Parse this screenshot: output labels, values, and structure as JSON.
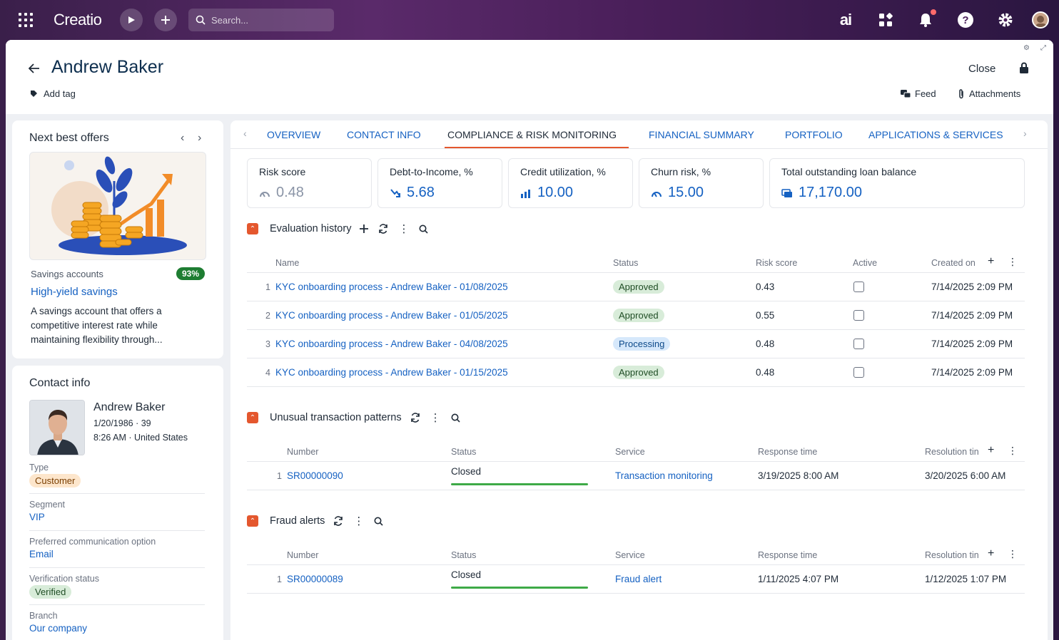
{
  "topbar": {
    "logo": "Creatio",
    "search_placeholder": "Search...",
    "ai_label": "ai"
  },
  "header": {
    "title": "Andrew Baker",
    "add_tag": "Add tag",
    "close": "Close",
    "feed": "Feed",
    "attachments": "Attachments"
  },
  "next_best_offers": {
    "title": "Next best offers",
    "category": "Savings accounts",
    "match": "93%",
    "offer_name": "High-yield savings",
    "description": "A savings account that offers a competitive interest rate while maintaining flexibility through..."
  },
  "contact_info": {
    "title": "Contact info",
    "name": "Andrew Baker",
    "birth": "1/20/1986 · 39",
    "time_location": "8:26 AM · United States",
    "fields": [
      {
        "label": "Type",
        "value": "Customer"
      },
      {
        "label": "Segment",
        "value": "VIP"
      },
      {
        "label": "Preferred communication option",
        "value": "Email"
      },
      {
        "label": "Verification status",
        "value": "Verified"
      },
      {
        "label": "Branch",
        "value": "Our company"
      }
    ]
  },
  "tabs": [
    {
      "label": "OVERVIEW"
    },
    {
      "label": "CONTACT INFO"
    },
    {
      "label": "COMPLIANCE & RISK MONITORING"
    },
    {
      "label": "FINANCIAL SUMMARY"
    },
    {
      "label": "PORTFOLIO"
    },
    {
      "label": "APPLICATIONS & SERVICES"
    }
  ],
  "metrics": [
    {
      "label": "Risk score",
      "value": "0.48",
      "icon": "gauge-icon"
    },
    {
      "label": "Debt-to-Income, %",
      "value": "5.68",
      "icon": "trend-down-icon"
    },
    {
      "label": "Credit utilization, %",
      "value": "10.00",
      "icon": "bar-chart-icon"
    },
    {
      "label": "Churn risk, %",
      "value": "15.00",
      "icon": "gauge-icon"
    },
    {
      "label": "Total outstanding loan balance",
      "value": "17,170.00",
      "icon": "money-icon"
    }
  ],
  "evaluation_history": {
    "title": "Evaluation history",
    "columns": [
      "Name",
      "Status",
      "Risk score",
      "Active",
      "Created on"
    ],
    "rows": [
      {
        "num": "1",
        "name": "KYC onboarding process - Andrew Baker - 01/08/2025",
        "status": "Approved",
        "risk": "0.43",
        "created": "7/14/2025 2:09 PM"
      },
      {
        "num": "2",
        "name": "KYC onboarding process - Andrew Baker - 01/05/2025",
        "status": "Approved",
        "risk": "0.55",
        "created": "7/14/2025 2:09 PM"
      },
      {
        "num": "3",
        "name": "KYC onboarding process - Andrew Baker - 04/08/2025",
        "status": "Processing",
        "risk": "0.48",
        "created": "7/14/2025 2:09 PM"
      },
      {
        "num": "4",
        "name": "KYC onboarding process - Andrew Baker - 01/15/2025",
        "status": "Approved",
        "risk": "0.48",
        "created": "7/14/2025 2:09 PM"
      }
    ]
  },
  "unusual_transactions": {
    "title": "Unusual transaction patterns",
    "columns": [
      "Number",
      "Status",
      "Service",
      "Response time",
      "Resolution tin"
    ],
    "rows": [
      {
        "num": "1",
        "number": "SR00000090",
        "status": "Closed",
        "service": "Transaction monitoring",
        "response": "3/19/2025 8:00 AM",
        "resolution": "3/20/2025 6:00 AM"
      }
    ]
  },
  "fraud_alerts": {
    "title": "Fraud alerts",
    "columns": [
      "Number",
      "Status",
      "Service",
      "Response time",
      "Resolution tin"
    ],
    "rows": [
      {
        "num": "1",
        "number": "SR00000089",
        "status": "Closed",
        "service": "Fraud alert",
        "response": "1/11/2025 4:07 PM",
        "resolution": "1/12/2025 1:07 PM"
      }
    ]
  },
  "colors": {
    "accent": "#e4572e",
    "link": "#1561c2",
    "status_green": "#3eaa47"
  }
}
